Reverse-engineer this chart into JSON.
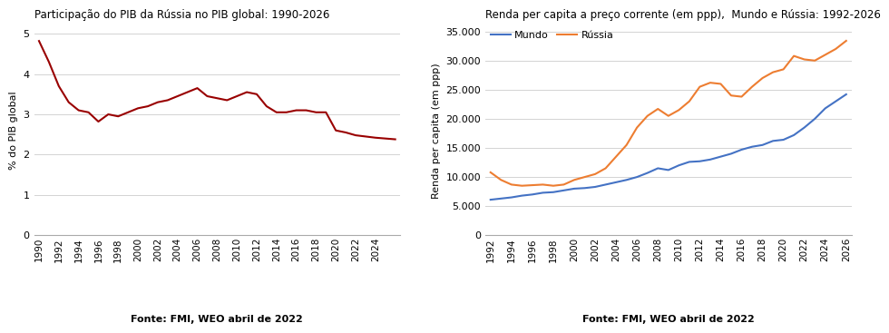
{
  "chart1": {
    "title": "Participação do PIB da Rússia no PIB global: 1990-2026",
    "ylabel": "% do PIB global",
    "source": "Fonte: FMI, WEO abril de 2022",
    "color": "#990000",
    "years": [
      1990,
      1991,
      1992,
      1993,
      1994,
      1995,
      1996,
      1997,
      1998,
      1999,
      2000,
      2001,
      2002,
      2003,
      2004,
      2005,
      2006,
      2007,
      2008,
      2009,
      2010,
      2011,
      2012,
      2013,
      2014,
      2015,
      2016,
      2017,
      2018,
      2019,
      2020,
      2021,
      2022,
      2023,
      2024,
      2025,
      2026
    ],
    "values": [
      4.82,
      4.3,
      3.7,
      3.3,
      3.1,
      3.05,
      2.82,
      3.0,
      2.95,
      3.05,
      3.15,
      3.2,
      3.3,
      3.35,
      3.45,
      3.55,
      3.65,
      3.45,
      3.4,
      3.35,
      3.45,
      3.55,
      3.5,
      3.2,
      3.05,
      3.05,
      3.1,
      3.1,
      3.05,
      3.05,
      2.6,
      2.55,
      2.48,
      2.45,
      2.42,
      2.4,
      2.38
    ],
    "ylim": [
      0,
      5.2
    ],
    "yticks": [
      0,
      1,
      2,
      3,
      4,
      5
    ],
    "xticks": [
      1990,
      1992,
      1994,
      1996,
      1998,
      2000,
      2002,
      2004,
      2006,
      2008,
      2010,
      2012,
      2014,
      2016,
      2018,
      2020,
      2022,
      2024
    ],
    "xlim": [
      1989.5,
      2026.5
    ]
  },
  "chart2": {
    "title": "Renda per capita a preço corrente (em ppp),  Mundo e Rússia: 1992-2026",
    "ylabel": "Renda per capita (em ppp)",
    "source": "Fonte: FMI, WEO abril de 2022",
    "color_mundo": "#4472C4",
    "color_russia": "#ED7D31",
    "years": [
      1992,
      1993,
      1994,
      1995,
      1996,
      1997,
      1998,
      1999,
      2000,
      2001,
      2002,
      2003,
      2004,
      2005,
      2006,
      2007,
      2008,
      2009,
      2010,
      2011,
      2012,
      2013,
      2014,
      2015,
      2016,
      2017,
      2018,
      2019,
      2020,
      2021,
      2022,
      2023,
      2024,
      2025,
      2026
    ],
    "mundo": [
      6100,
      6300,
      6500,
      6800,
      7000,
      7300,
      7400,
      7700,
      8000,
      8100,
      8300,
      8700,
      9100,
      9500,
      10000,
      10700,
      11500,
      11200,
      12000,
      12600,
      12700,
      13000,
      13500,
      14000,
      14700,
      15200,
      15500,
      16200,
      16400,
      17200,
      18500,
      20000,
      21800,
      23000,
      24200
    ],
    "russia": [
      10800,
      9500,
      8700,
      8500,
      8600,
      8700,
      8500,
      8700,
      9500,
      10000,
      10500,
      11500,
      13500,
      15500,
      18500,
      20500,
      21700,
      20500,
      21500,
      23000,
      25500,
      26200,
      26000,
      24000,
      23800,
      25500,
      27000,
      28000,
      28500,
      30800,
      30200,
      30000,
      31000,
      32000,
      33400
    ],
    "ylim": [
      0,
      36000
    ],
    "yticks": [
      0,
      5000,
      10000,
      15000,
      20000,
      25000,
      30000,
      35000
    ],
    "xticks": [
      1992,
      1994,
      1996,
      1998,
      2000,
      2002,
      2004,
      2006,
      2008,
      2010,
      2012,
      2014,
      2016,
      2018,
      2020,
      2022,
      2024,
      2026
    ],
    "xlim": [
      1991.5,
      2026.5
    ]
  }
}
